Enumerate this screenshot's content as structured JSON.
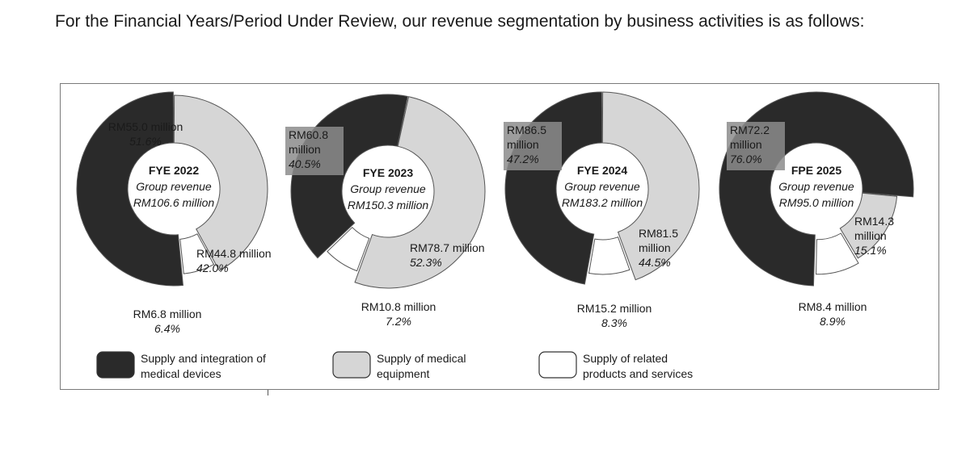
{
  "intro_text": "For the Financial Years/Period Under Review, our revenue segmentation by business activities is as follows:",
  "colors": {
    "dark": "#2a2a2a",
    "light": "#d6d6d6",
    "white": "#ffffff",
    "stroke": "#555555",
    "labelbox": "#8c8c8c"
  },
  "legend": [
    {
      "label_line1": "Supply and integration of",
      "label_line2": "medical devices",
      "color": "#2a2a2a"
    },
    {
      "label_line1": "Supply of medical",
      "label_line2": "equipment",
      "color": "#d6d6d6"
    },
    {
      "label_line1": "Supply of related",
      "label_line2": "products and services",
      "color": "#ffffff"
    }
  ],
  "chart_data": [
    {
      "type": "pie",
      "title": "FYE 2022",
      "center_line1": "Group revenue",
      "center_line2": "RM106.6 million",
      "slices": [
        {
          "series": "Supply and integration of medical devices",
          "amount": "RM55.0 million",
          "percent": "51.6%",
          "value": 51.6,
          "amount_lines": [
            "RM55.0 million"
          ]
        },
        {
          "series": "Supply of medical equipment",
          "amount": "RM44.8 million",
          "percent": "42.0%",
          "value": 42.0,
          "amount_lines": [
            "RM44.8 million"
          ]
        },
        {
          "series": "Supply of related products and services",
          "amount": "RM6.8 million",
          "percent": "6.4%",
          "value": 6.4,
          "amount_lines": [
            "RM6.8 million"
          ]
        }
      ]
    },
    {
      "type": "pie",
      "title": "FYE 2023",
      "center_line1": "Group revenue",
      "center_line2": "RM150.3 million",
      "slices": [
        {
          "series": "Supply and integration of medical devices",
          "amount": "RM60.8 million",
          "percent": "40.5%",
          "value": 40.5,
          "amount_lines": [
            "RM60.8",
            "million"
          ]
        },
        {
          "series": "Supply of medical equipment",
          "amount": "RM78.7 million",
          "percent": "52.3%",
          "value": 52.3,
          "amount_lines": [
            "RM78.7 million"
          ]
        },
        {
          "series": "Supply of related products and services",
          "amount": "RM10.8 million",
          "percent": "7.2%",
          "value": 7.2,
          "amount_lines": [
            "RM10.8 million"
          ]
        }
      ]
    },
    {
      "type": "pie",
      "title": "FYE 2024",
      "center_line1": "Group revenue",
      "center_line2": "RM183.2 million",
      "slices": [
        {
          "series": "Supply and integration of medical devices",
          "amount": "RM86.5 million",
          "percent": "47.2%",
          "value": 47.2,
          "amount_lines": [
            "RM86.5",
            "million"
          ]
        },
        {
          "series": "Supply of medical equipment",
          "amount": "RM81.5 million",
          "percent": "44.5%",
          "value": 44.5,
          "amount_lines": [
            "RM81.5",
            "million"
          ]
        },
        {
          "series": "Supply of related products and services",
          "amount": "RM15.2 million",
          "percent": "8.3%",
          "value": 8.3,
          "amount_lines": [
            "RM15.2 million"
          ]
        }
      ]
    },
    {
      "type": "pie",
      "title": "FPE 2025",
      "center_line1": "Group revenue",
      "center_line2": "RM95.0 million",
      "slices": [
        {
          "series": "Supply and integration of medical devices",
          "amount": "RM72.2 million",
          "percent": "76.0%",
          "value": 76.0,
          "amount_lines": [
            "RM72.2",
            "million"
          ]
        },
        {
          "series": "Supply of medical equipment",
          "amount": "RM14.3 million",
          "percent": "15.1%",
          "value": 15.1,
          "amount_lines": [
            "RM14.3",
            "million"
          ]
        },
        {
          "series": "Supply of related products and services",
          "amount": "RM8.4 million",
          "percent": "8.9%",
          "value": 8.9,
          "amount_lines": [
            "RM8.4 million"
          ]
        }
      ]
    }
  ]
}
